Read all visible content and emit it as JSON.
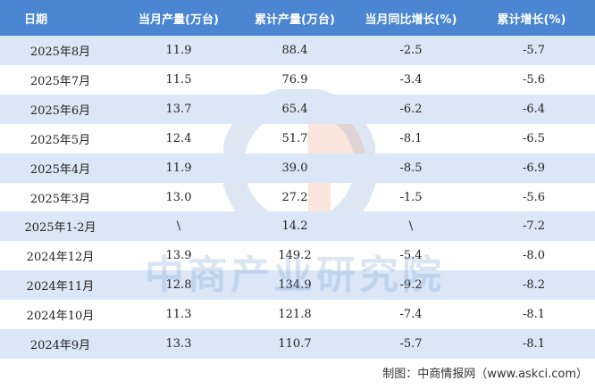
{
  "table": {
    "header": [
      "日期",
      "当月产量(万台)",
      "累计产量(万台)",
      "当月同比增长(%)",
      "累计增长(%)"
    ],
    "rows": [
      [
        "2025年8月",
        "11.9",
        "88.4",
        "-2.5",
        "-5.7"
      ],
      [
        "2025年7月",
        "11.5",
        "76.9",
        "-3.4",
        "-5.6"
      ],
      [
        "2025年6月",
        "13.7",
        "65.4",
        "-6.2",
        "-6.4"
      ],
      [
        "2025年5月",
        "12.4",
        "51.7",
        "-8.1",
        "-6.5"
      ],
      [
        "2025年4月",
        "11.9",
        "39.0",
        "-8.5",
        "-6.9"
      ],
      [
        "2025年3月",
        "13.0",
        "27.2",
        "-1.5",
        "-5.6"
      ],
      [
        "2025年1-2月",
        "\\",
        "14.2",
        "\\",
        "-7.2"
      ],
      [
        "2024年12月",
        "13.9",
        "149.2",
        "-5.4",
        "-8.0"
      ],
      [
        "2024年11月",
        "12.8",
        "134.9",
        "-9.2",
        "-8.2"
      ],
      [
        "2024年10月",
        "11.3",
        "121.8",
        "-7.4",
        "-8.1"
      ],
      [
        "2024年9月",
        "13.3",
        "110.7",
        "-5.7",
        "-8.1"
      ]
    ]
  },
  "watermark": "中商产业研究院",
  "source": "制图：中商情报网（www.askci.com）"
}
